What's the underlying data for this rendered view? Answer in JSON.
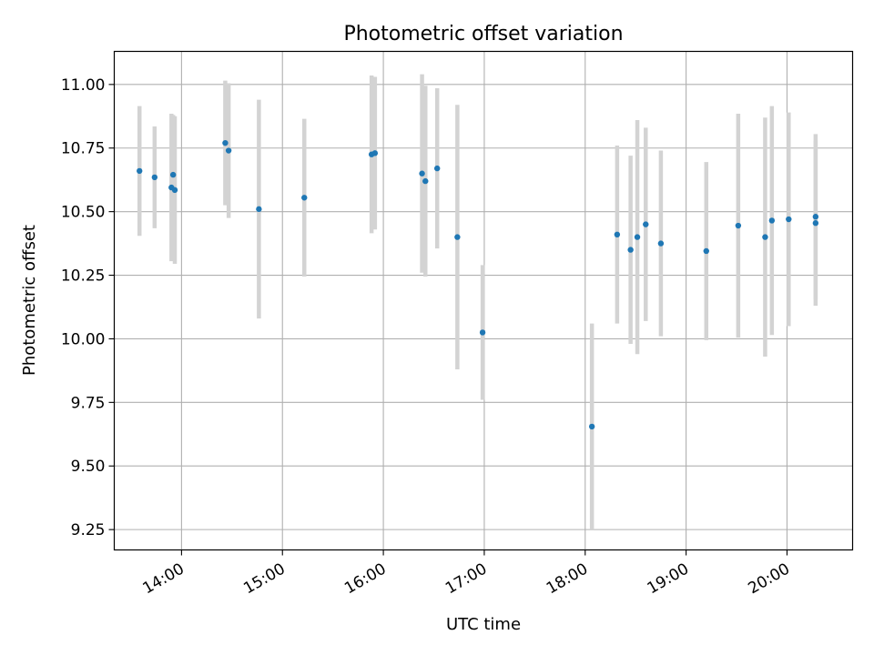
{
  "chart_data": {
    "type": "scatter",
    "title": "Photometric offset variation",
    "xlabel": "UTC time",
    "ylabel": "Photometric offset",
    "x_ticks": [
      "14:00",
      "15:00",
      "16:00",
      "17:00",
      "18:00",
      "19:00",
      "20:00"
    ],
    "y_ticks": [
      "9.25",
      "9.50",
      "9.75",
      "10.00",
      "10.25",
      "10.50",
      "10.75",
      "11.00"
    ],
    "xlim": [
      "13:20",
      "20:39"
    ],
    "ylim": [
      9.17,
      11.13
    ],
    "grid": true,
    "marker_color": "#1f77b4",
    "errorbar_color": "#d3d3d3",
    "points": [
      {
        "x": "13:35",
        "y": 10.66,
        "yerr": 0.255
      },
      {
        "x": "13:44",
        "y": 10.635,
        "yerr": 0.2
      },
      {
        "x": "13:54",
        "y": 10.595,
        "yerr": 0.29
      },
      {
        "x": "13:55",
        "y": 10.645,
        "yerr": 0.235
      },
      {
        "x": "13:56",
        "y": 10.585,
        "yerr": 0.29
      },
      {
        "x": "14:26",
        "y": 10.77,
        "yerr": 0.245
      },
      {
        "x": "14:28",
        "y": 10.74,
        "yerr": 0.265
      },
      {
        "x": "14:46",
        "y": 10.51,
        "yerr": 0.43
      },
      {
        "x": "15:13",
        "y": 10.555,
        "yerr": 0.31
      },
      {
        "x": "15:53",
        "y": 10.725,
        "yerr": 0.31
      },
      {
        "x": "15:55",
        "y": 10.73,
        "yerr": 0.3
      },
      {
        "x": "16:23",
        "y": 10.65,
        "yerr": 0.39
      },
      {
        "x": "16:25",
        "y": 10.62,
        "yerr": 0.375
      },
      {
        "x": "16:32",
        "y": 10.67,
        "yerr": 0.315
      },
      {
        "x": "16:44",
        "y": 10.4,
        "yerr": 0.52
      },
      {
        "x": "16:59",
        "y": 10.025,
        "yerr": 0.265
      },
      {
        "x": "18:04",
        "y": 9.655,
        "yerr": 0.405
      },
      {
        "x": "18:19",
        "y": 10.41,
        "yerr": 0.35
      },
      {
        "x": "18:27",
        "y": 10.35,
        "yerr": 0.37
      },
      {
        "x": "18:31",
        "y": 10.4,
        "yerr": 0.46
      },
      {
        "x": "18:36",
        "y": 10.45,
        "yerr": 0.38
      },
      {
        "x": "18:45",
        "y": 10.375,
        "yerr": 0.365
      },
      {
        "x": "19:12",
        "y": 10.345,
        "yerr": 0.35
      },
      {
        "x": "19:31",
        "y": 10.445,
        "yerr": 0.44
      },
      {
        "x": "19:47",
        "y": 10.4,
        "yerr": 0.47
      },
      {
        "x": "19:51",
        "y": 10.465,
        "yerr": 0.45
      },
      {
        "x": "20:01",
        "y": 10.47,
        "yerr": 0.42
      },
      {
        "x": "20:17",
        "y": 10.455,
        "yerr": 0.325
      },
      {
        "x": "20:17",
        "y": 10.48,
        "yerr": 0.325
      }
    ]
  }
}
